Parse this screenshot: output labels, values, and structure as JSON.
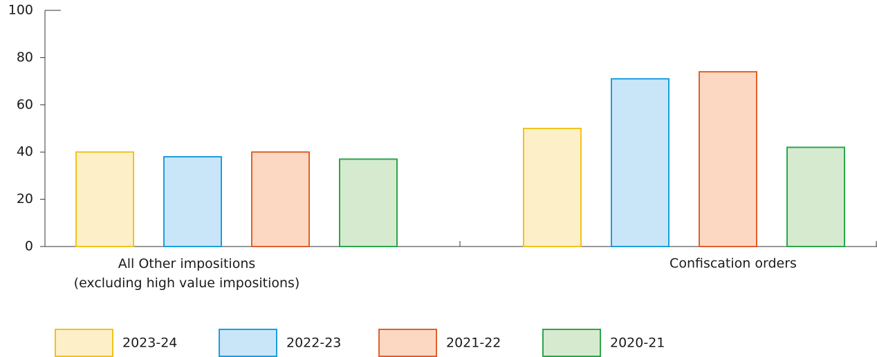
{
  "chart_data": {
    "type": "bar",
    "categories": [
      "All Other impositions\n(excluding high value impositions)",
      "Confiscation orders"
    ],
    "series": [
      {
        "name": "2023-24",
        "color": "#f2c21b",
        "fill": "#fdf0c9",
        "values": [
          40,
          50
        ]
      },
      {
        "name": "2022-23",
        "color": "#1c9ddf",
        "fill": "#c9e6f8",
        "values": [
          38,
          71
        ]
      },
      {
        "name": "2021-22",
        "color": "#e0602a",
        "fill": "#fcd8c3",
        "values": [
          40,
          74
        ]
      },
      {
        "name": "2020-21",
        "color": "#2aa64a",
        "fill": "#d6ead0",
        "values": [
          37,
          42
        ]
      }
    ],
    "ylim": [
      0,
      100
    ],
    "yticks": [
      0,
      20,
      40,
      60,
      80,
      100
    ],
    "legend": "bottom"
  }
}
